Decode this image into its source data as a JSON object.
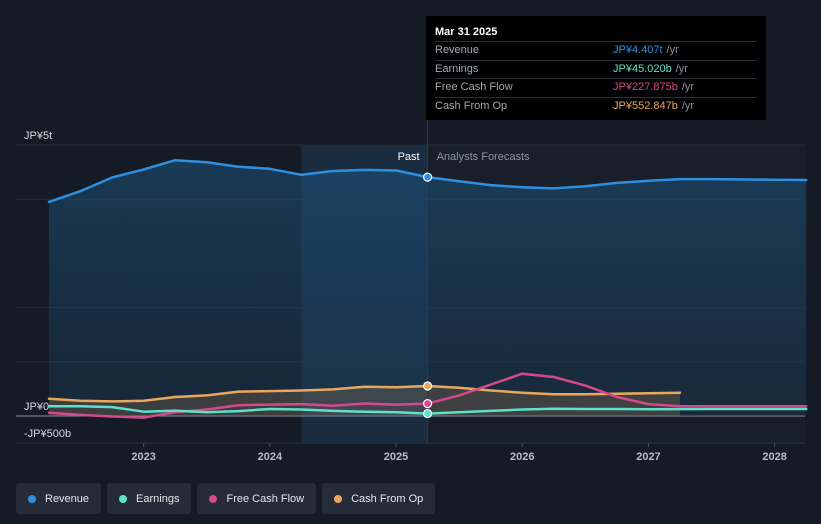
{
  "tooltip": {
    "date": "Mar 31 2025",
    "rows": [
      {
        "label": "Revenue",
        "value": "JP¥4.407t",
        "unit": "/yr",
        "color": "#2e8fe0"
      },
      {
        "label": "Earnings",
        "value": "JP¥45.020b",
        "unit": "/yr",
        "color": "#5ee0c9"
      },
      {
        "label": "Free Cash Flow",
        "value": "JP¥227.875b",
        "unit": "/yr",
        "color": "#d6488c"
      },
      {
        "label": "Cash From Op",
        "value": "JP¥552.847b",
        "unit": "/yr",
        "color": "#e8a85c"
      }
    ]
  },
  "labels": {
    "past": "Past",
    "forecast": "Analysts Forecasts"
  },
  "legend": [
    {
      "label": "Revenue",
      "color": "#2e8fe0"
    },
    {
      "label": "Earnings",
      "color": "#5ee0c9"
    },
    {
      "label": "Free Cash Flow",
      "color": "#d6488c"
    },
    {
      "label": "Cash From Op",
      "color": "#e8a85c"
    }
  ],
  "chart_data": {
    "type": "line",
    "y_unit": "JP¥ billions",
    "y_tick_labels": [
      "JP¥5t",
      "JP¥0",
      "-JP¥500b"
    ],
    "y_ticks": [
      5000,
      0,
      -500
    ],
    "ylim": [
      -500,
      5000
    ],
    "x_tick_labels": [
      "2023",
      "2024",
      "2025",
      "2026",
      "2027",
      "2028"
    ],
    "x_ticks": [
      2023,
      2024,
      2025,
      2026,
      2027,
      2028
    ],
    "xlim": [
      2022.25,
      2028.25
    ],
    "past_end": 2025.25,
    "highlight_start": 2024.25,
    "series": [
      {
        "name": "Revenue",
        "color": "#2e8fe0",
        "fill": true,
        "points": [
          [
            2022.25,
            3950
          ],
          [
            2022.5,
            4150
          ],
          [
            2022.75,
            4400
          ],
          [
            2023.0,
            4550
          ],
          [
            2023.25,
            4720
          ],
          [
            2023.5,
            4680
          ],
          [
            2023.75,
            4600
          ],
          [
            2024.0,
            4560
          ],
          [
            2024.25,
            4450
          ],
          [
            2024.5,
            4520
          ],
          [
            2024.75,
            4540
          ],
          [
            2025.0,
            4530
          ],
          [
            2025.25,
            4407
          ],
          [
            2025.5,
            4330
          ],
          [
            2025.75,
            4260
          ],
          [
            2026.0,
            4220
          ],
          [
            2026.25,
            4200
          ],
          [
            2026.5,
            4240
          ],
          [
            2026.75,
            4300
          ],
          [
            2027.0,
            4340
          ],
          [
            2027.25,
            4370
          ],
          [
            2027.5,
            4370
          ],
          [
            2028.0,
            4360
          ],
          [
            2028.25,
            4355
          ]
        ]
      },
      {
        "name": "Earnings",
        "color": "#5ee0c9",
        "fill": false,
        "points": [
          [
            2022.25,
            180
          ],
          [
            2022.5,
            180
          ],
          [
            2022.75,
            165
          ],
          [
            2023.0,
            80
          ],
          [
            2023.25,
            100
          ],
          [
            2023.5,
            70
          ],
          [
            2023.75,
            90
          ],
          [
            2024.0,
            130
          ],
          [
            2024.25,
            120
          ],
          [
            2024.5,
            95
          ],
          [
            2024.75,
            80
          ],
          [
            2025.0,
            70
          ],
          [
            2025.25,
            45
          ],
          [
            2025.5,
            70
          ],
          [
            2025.75,
            95
          ],
          [
            2026.0,
            120
          ],
          [
            2026.25,
            135
          ],
          [
            2026.5,
            130
          ],
          [
            2026.75,
            130
          ],
          [
            2027.0,
            125
          ],
          [
            2027.5,
            130
          ],
          [
            2028.0,
            130
          ],
          [
            2028.25,
            130
          ]
        ]
      },
      {
        "name": "Free Cash Flow",
        "color": "#d6488c",
        "fill": false,
        "points": [
          [
            2022.25,
            60
          ],
          [
            2022.5,
            20
          ],
          [
            2022.75,
            -10
          ],
          [
            2023.0,
            -30
          ],
          [
            2023.25,
            70
          ],
          [
            2023.5,
            120
          ],
          [
            2023.75,
            200
          ],
          [
            2024.0,
            210
          ],
          [
            2024.25,
            220
          ],
          [
            2024.5,
            190
          ],
          [
            2024.75,
            230
          ],
          [
            2025.0,
            210
          ],
          [
            2025.25,
            228
          ],
          [
            2025.5,
            380
          ],
          [
            2025.75,
            580
          ],
          [
            2026.0,
            780
          ],
          [
            2026.25,
            720
          ],
          [
            2026.5,
            560
          ],
          [
            2026.75,
            350
          ],
          [
            2027.0,
            220
          ],
          [
            2027.25,
            180
          ],
          [
            2028.0,
            180
          ],
          [
            2028.25,
            180
          ]
        ]
      },
      {
        "name": "Cash From Op",
        "color": "#e8a85c",
        "fill": true,
        "points": [
          [
            2022.25,
            320
          ],
          [
            2022.5,
            280
          ],
          [
            2022.75,
            270
          ],
          [
            2023.0,
            280
          ],
          [
            2023.25,
            350
          ],
          [
            2023.5,
            380
          ],
          [
            2023.75,
            450
          ],
          [
            2024.0,
            460
          ],
          [
            2024.25,
            470
          ],
          [
            2024.5,
            490
          ],
          [
            2024.75,
            540
          ],
          [
            2025.0,
            530
          ],
          [
            2025.25,
            553
          ],
          [
            2025.5,
            520
          ],
          [
            2025.75,
            470
          ],
          [
            2026.0,
            430
          ],
          [
            2026.25,
            400
          ],
          [
            2026.5,
            400
          ],
          [
            2026.75,
            410
          ],
          [
            2027.0,
            420
          ],
          [
            2027.25,
            430
          ]
        ]
      }
    ]
  }
}
